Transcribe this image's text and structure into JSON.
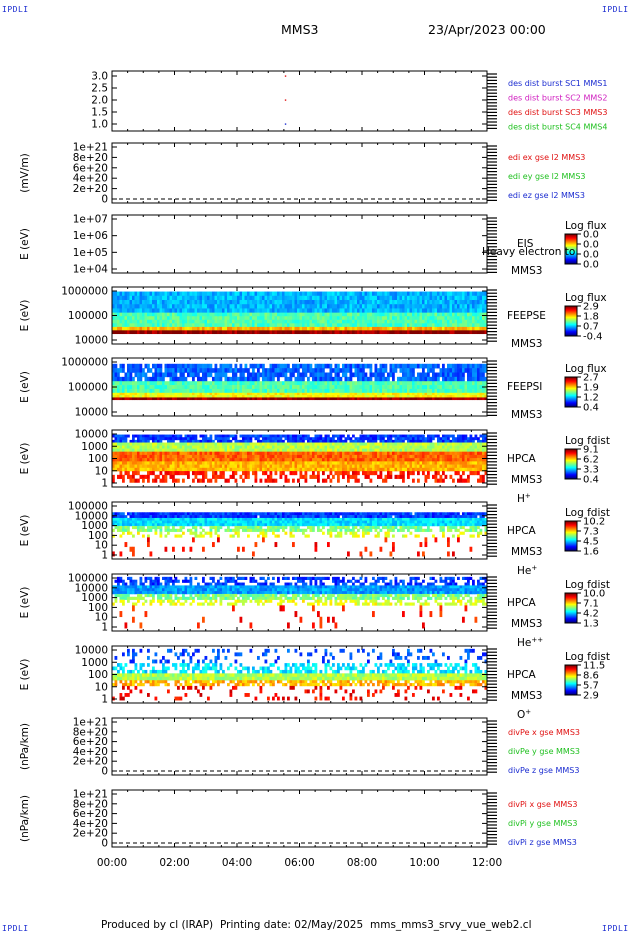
{
  "header": {
    "corner_label": "IPDLI",
    "spacecraft": "MMS3",
    "date_time": "23/Apr/2023 00:00"
  },
  "footer": {
    "produced_by": "Produced by cl (IRAP)",
    "printing_date": "Printing date: 02/May/2025",
    "filename": "mms_mms3_srvy_vue_web2.cl"
  },
  "chart_data": [
    {
      "type": "scatter",
      "id": "des-dist-burst",
      "ylabel": "",
      "yticks": [
        "3.0",
        "2.5",
        "2.0",
        "1.5",
        "1.0"
      ],
      "ylim": [
        0.7,
        3.3
      ],
      "series": [
        {
          "name": "des dist burst SC1 MMS1",
          "color": "#1a2bd0",
          "points": [
            [
              5.55,
              1.0
            ]
          ]
        },
        {
          "name": "des dist burst SC2 MMS2",
          "color": "#d020c0",
          "points": []
        },
        {
          "name": "des dist burst SC3 MMS3",
          "color": "#e01010",
          "points": [
            [
              5.55,
              2.0
            ],
            [
              5.55,
              3.0
            ]
          ]
        },
        {
          "name": "des dist burst SC4 MMS4",
          "color": "#20c020",
          "points": []
        }
      ]
    },
    {
      "type": "line",
      "id": "edi-e",
      "ylabel": "(mV/m)",
      "yticks": [
        "1e+21",
        "8e+20",
        "6e+20",
        "4e+20",
        "2e+20",
        "0"
      ],
      "series": [
        {
          "name": "edi ex gse l2 MMS3",
          "color": "#e01010"
        },
        {
          "name": "edi ey gse l2 MMS3",
          "color": "#20c020"
        },
        {
          "name": "edi ez gse l2 MMS3",
          "color": "#1a2bd0"
        }
      ]
    },
    {
      "type": "heatmap",
      "id": "eis",
      "ylabel": "E (eV)",
      "yticks": [
        "1e+07",
        "1e+06",
        "1e+05",
        "1e+04"
      ],
      "instrument": "EIS",
      "spacecraft": "MMS3",
      "overlay_text": "Heavy electron to",
      "colorbar": {
        "title": "Log flux",
        "ticks": [
          "0.0",
          "0.0",
          "0.0",
          "0.0"
        ]
      }
    },
    {
      "type": "heatmap",
      "id": "feepse",
      "ylabel": "E (eV)",
      "yticks": [
        "1000000",
        "100000",
        "10000"
      ],
      "instrument": "FEEPSE",
      "spacecraft": "MMS3",
      "colorbar": {
        "title": "Log flux",
        "ticks": [
          "2.9",
          "1.8",
          "0.7",
          "-0.4"
        ]
      }
    },
    {
      "type": "heatmap",
      "id": "feepsi",
      "ylabel": "E (eV)",
      "yticks": [
        "1000000",
        "100000",
        "10000"
      ],
      "instrument": "FEEPSI",
      "spacecraft": "MMS3",
      "colorbar": {
        "title": "Log flux",
        "ticks": [
          "2.7",
          "1.9",
          "1.2",
          "0.4"
        ]
      }
    },
    {
      "type": "heatmap",
      "id": "hpca-h",
      "ylabel": "E (eV)",
      "yticks": [
        "10000",
        "1000",
        "100",
        "10",
        "1"
      ],
      "instrument": "HPCA",
      "spacecraft": "MMS3",
      "species": "H",
      "charge": "+",
      "colorbar": {
        "title": "Log fdist",
        "ticks": [
          "9.1",
          "6.2",
          "3.3",
          "0.4"
        ]
      }
    },
    {
      "type": "heatmap",
      "id": "hpca-he",
      "ylabel": "E (eV)",
      "yticks": [
        "100000",
        "10000",
        "1000",
        "100",
        "10",
        "1"
      ],
      "instrument": "HPCA",
      "spacecraft": "MMS3",
      "species": "He",
      "charge": "+",
      "colorbar": {
        "title": "Log fdist",
        "ticks": [
          "10.2",
          "7.3",
          "4.5",
          "1.6"
        ]
      }
    },
    {
      "type": "heatmap",
      "id": "hpca-hepp",
      "ylabel": "E (eV)",
      "yticks": [
        "100000",
        "10000",
        "1000",
        "100",
        "10",
        "1"
      ],
      "instrument": "HPCA",
      "spacecraft": "MMS3",
      "species": "He",
      "charge": "++",
      "colorbar": {
        "title": "Log fdist",
        "ticks": [
          "10.0",
          "7.1",
          "4.2",
          "1.3"
        ]
      }
    },
    {
      "type": "heatmap",
      "id": "hpca-o",
      "ylabel": "E (eV)",
      "yticks": [
        "10000",
        "1000",
        "100",
        "10",
        "1"
      ],
      "instrument": "HPCA",
      "spacecraft": "MMS3",
      "species": "O",
      "charge": "+",
      "colorbar": {
        "title": "Log fdist",
        "ticks": [
          "11.5",
          "8.6",
          "5.7",
          "2.9"
        ]
      }
    },
    {
      "type": "line",
      "id": "divpe",
      "ylabel": "(nPa/km)",
      "yticks": [
        "1e+21",
        "8e+20",
        "6e+20",
        "4e+20",
        "2e+20",
        "0"
      ],
      "series": [
        {
          "name": "divPe x gse MMS3",
          "color": "#e01010"
        },
        {
          "name": "divPe y gse MMS3",
          "color": "#20c020"
        },
        {
          "name": "divPe z gse MMS3",
          "color": "#1a2bd0"
        }
      ]
    },
    {
      "type": "line",
      "id": "divpi",
      "ylabel": "(nPa/km)",
      "yticks": [
        "1e+21",
        "8e+20",
        "6e+20",
        "4e+20",
        "2e+20",
        "0"
      ],
      "series": [
        {
          "name": "divPi x gse MMS3",
          "color": "#e01010"
        },
        {
          "name": "divPi y gse MMS3",
          "color": "#20c020"
        },
        {
          "name": "divPi z gse MMS3",
          "color": "#1a2bd0"
        }
      ]
    }
  ],
  "x_axis": {
    "ticks": [
      "00:00",
      "02:00",
      "04:00",
      "06:00",
      "08:00",
      "10:00",
      "12:00"
    ],
    "xlim_hours": [
      0,
      12
    ]
  }
}
